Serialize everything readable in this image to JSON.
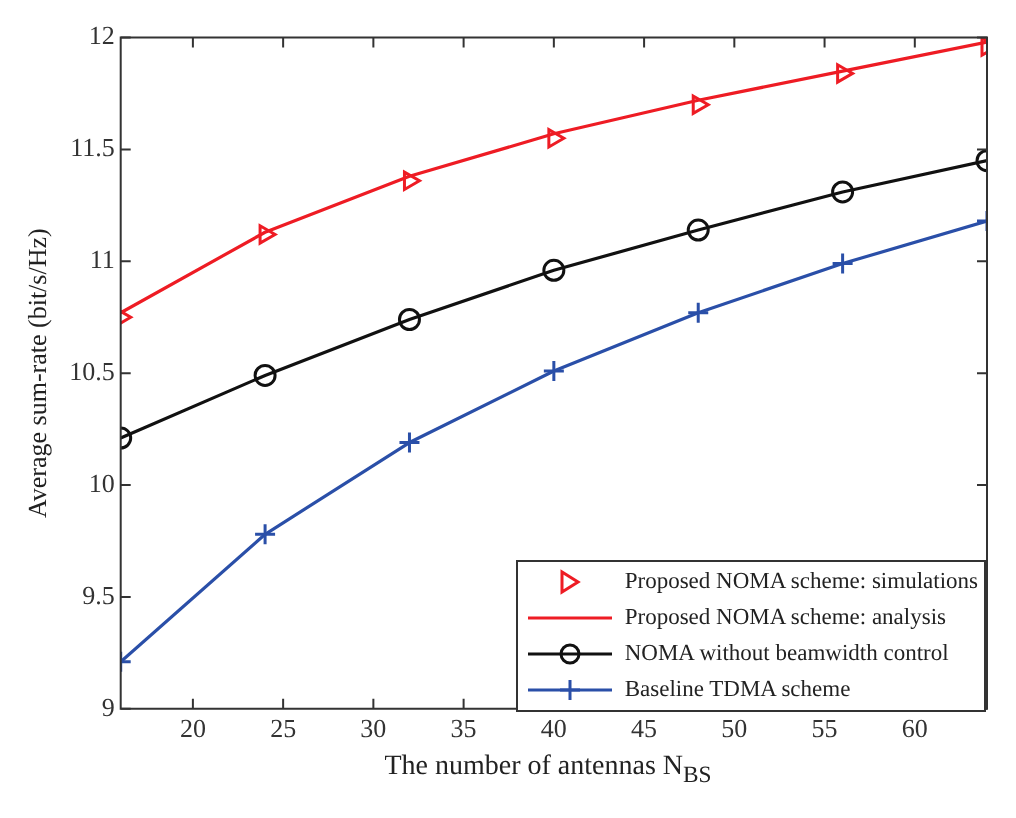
{
  "chart_data": {
    "type": "line",
    "xlabel": "The number of antennas N$_{BS}$",
    "ylabel": "Average sum-rate (bit/s/Hz)",
    "x": [
      16,
      24,
      32,
      40,
      48,
      56,
      64
    ],
    "xlim": [
      16,
      64
    ],
    "xticks": [
      20,
      25,
      30,
      35,
      40,
      45,
      50,
      55,
      60
    ],
    "ylim": [
      9,
      12
    ],
    "yticks": [
      9,
      9.5,
      10,
      10.5,
      11,
      11.5,
      12
    ],
    "grid": false,
    "legend": "bottom right",
    "series": [
      {
        "name": "Proposed NOMA scheme: simulations",
        "type": "scatter",
        "marker": "triangle",
        "color": "#ee1c24",
        "values": [
          10.75,
          11.12,
          11.36,
          11.55,
          11.7,
          11.84,
          11.96
        ]
      },
      {
        "name": "Proposed NOMA scheme: analysis",
        "marker": "none",
        "color": "#ee1c24",
        "values": [
          10.77,
          11.13,
          11.38,
          11.57,
          11.72,
          11.85,
          11.98
        ]
      },
      {
        "name": "NOMA without beamwidth control",
        "marker": "circle",
        "color": "#111111",
        "values": [
          10.21,
          10.49,
          10.74,
          10.96,
          11.14,
          11.31,
          11.45
        ]
      },
      {
        "name": "Baseline TDMA scheme",
        "marker": "cross",
        "color": "#2a4fa8",
        "values": [
          9.21,
          9.78,
          10.19,
          10.51,
          10.77,
          10.99,
          11.18
        ]
      }
    ]
  }
}
